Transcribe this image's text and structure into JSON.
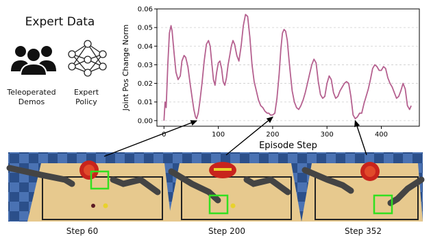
{
  "expert_data": {
    "title": "Expert Data",
    "sources": [
      {
        "label_lines": [
          "Teleoperated",
          "Demos"
        ],
        "icon": "people-group-icon"
      },
      {
        "label_lines": [
          "Expert",
          "Policy"
        ],
        "icon": "neural-network-icon"
      }
    ]
  },
  "chart_data": {
    "type": "line",
    "xlabel": "Episode Step",
    "ylabel": "Joint Pos Change Norm",
    "xlim": [
      -13,
      470
    ],
    "ylim": [
      -0.003,
      0.06
    ],
    "xticks": [
      0,
      100,
      200,
      300,
      400
    ],
    "yticks": [
      0.0,
      0.01,
      0.02,
      0.03,
      0.04,
      0.05,
      0.06
    ],
    "ytick_labels": [
      "0.00",
      "0.01",
      "0.02",
      "0.03",
      "0.04",
      "0.05",
      "0.06"
    ],
    "grid": "horizontal-dashed",
    "line_color": "#b5608f",
    "series": [
      {
        "x": [
          0,
          2,
          4,
          7,
          10,
          13,
          15,
          18,
          22,
          26,
          30,
          33,
          37,
          40,
          44,
          48,
          52,
          55,
          58,
          60,
          63,
          66,
          70,
          74,
          78,
          82,
          85,
          88,
          91,
          94,
          97,
          100,
          103,
          106,
          109,
          112,
          115,
          118,
          121,
          124,
          127,
          130,
          134,
          138,
          142,
          146,
          150,
          154,
          158,
          162,
          166,
          170,
          174,
          178,
          182,
          186,
          190,
          193,
          196,
          200,
          204,
          208,
          212,
          215,
          218,
          221,
          224,
          227,
          230,
          233,
          236,
          240,
          244,
          248,
          252,
          256,
          260,
          264,
          268,
          272,
          276,
          280,
          284,
          288,
          292,
          296,
          300,
          304,
          308,
          312,
          316,
          320,
          324,
          328,
          332,
          336,
          340,
          344,
          348,
          352,
          356,
          360,
          364,
          368,
          372,
          376,
          380,
          384,
          388,
          392,
          396,
          400,
          404,
          408,
          412,
          416,
          420,
          424,
          428,
          432,
          436,
          440,
          444,
          448,
          452,
          455
        ],
        "y": [
          0.0,
          0.01,
          0.007,
          0.03,
          0.047,
          0.051,
          0.048,
          0.038,
          0.026,
          0.022,
          0.024,
          0.032,
          0.035,
          0.034,
          0.029,
          0.02,
          0.012,
          0.006,
          0.002,
          0.001,
          0.004,
          0.01,
          0.02,
          0.032,
          0.041,
          0.043,
          0.04,
          0.031,
          0.022,
          0.019,
          0.026,
          0.031,
          0.032,
          0.028,
          0.021,
          0.019,
          0.023,
          0.03,
          0.035,
          0.04,
          0.043,
          0.041,
          0.035,
          0.032,
          0.04,
          0.051,
          0.057,
          0.056,
          0.045,
          0.03,
          0.021,
          0.016,
          0.011,
          0.008,
          0.007,
          0.005,
          0.004,
          0.004,
          0.003,
          0.003,
          0.004,
          0.012,
          0.025,
          0.038,
          0.047,
          0.049,
          0.048,
          0.043,
          0.033,
          0.024,
          0.016,
          0.01,
          0.007,
          0.006,
          0.008,
          0.011,
          0.015,
          0.02,
          0.025,
          0.03,
          0.033,
          0.031,
          0.021,
          0.014,
          0.012,
          0.013,
          0.02,
          0.024,
          0.022,
          0.015,
          0.012,
          0.013,
          0.016,
          0.018,
          0.02,
          0.021,
          0.02,
          0.013,
          0.003,
          0.001,
          0.002,
          0.004,
          0.004,
          0.009,
          0.013,
          0.017,
          0.022,
          0.028,
          0.03,
          0.029,
          0.027,
          0.027,
          0.029,
          0.028,
          0.023,
          0.02,
          0.018,
          0.015,
          0.012,
          0.013,
          0.016,
          0.02,
          0.017,
          0.008,
          0.006,
          0.008
        ]
      }
    ],
    "arrows_from_steps": [
      60,
      200,
      352
    ]
  },
  "snapshots": [
    {
      "label": "Step 60"
    },
    {
      "label": "Step 200"
    },
    {
      "label": "Step 352"
    }
  ]
}
